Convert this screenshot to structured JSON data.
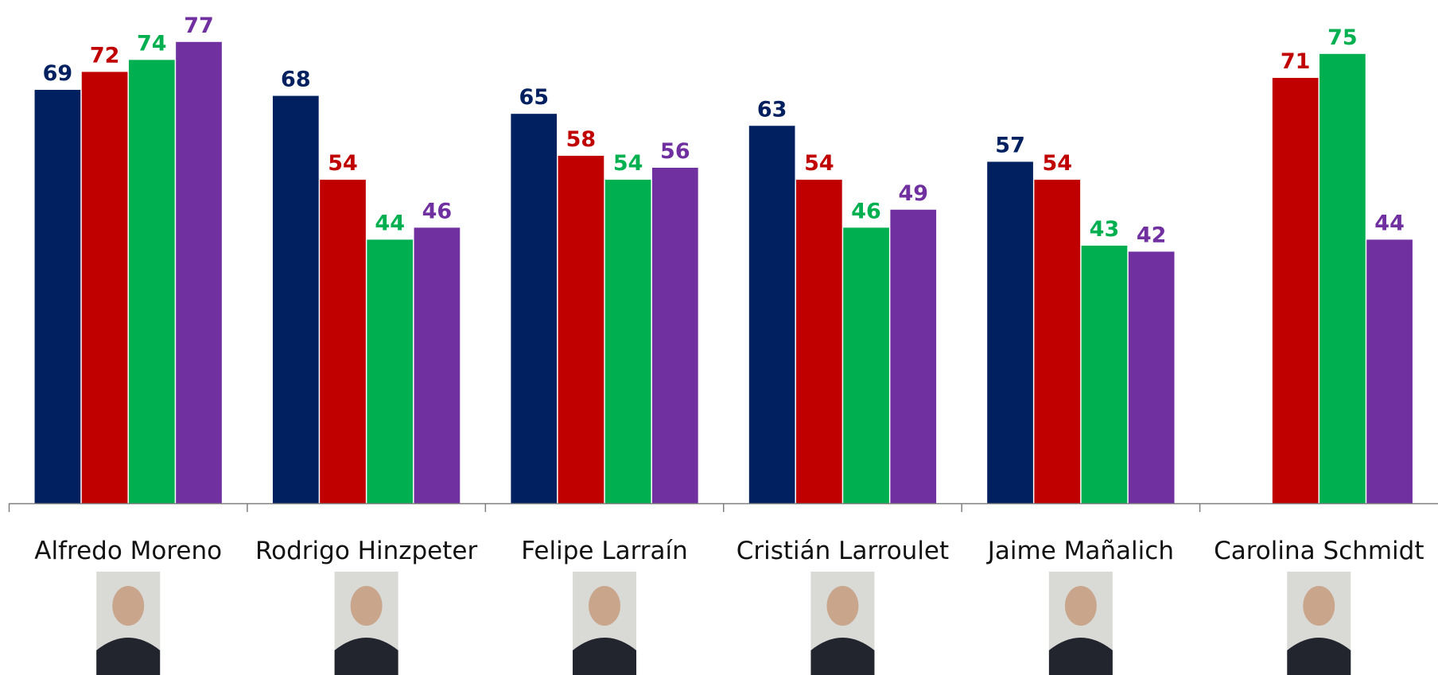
{
  "chart_data": {
    "type": "bar",
    "categories": [
      "Alfredo Moreno",
      "Rodrigo Hinzpeter",
      "Felipe Larraín",
      "Cristián Larroulet",
      "Jaime Mañalich",
      "Carolina Schmidt"
    ],
    "series": [
      {
        "color": "#002060",
        "values": [
          69,
          68,
          65,
          63,
          57,
          null
        ]
      },
      {
        "color": "#c00000",
        "values": [
          72,
          54,
          58,
          54,
          54,
          71
        ]
      },
      {
        "color": "#00b050",
        "values": [
          74,
          44,
          54,
          46,
          43,
          75
        ]
      },
      {
        "color": "#7030a0",
        "values": [
          77,
          46,
          56,
          49,
          42,
          44
        ]
      }
    ],
    "ylim": [
      0,
      84
    ]
  }
}
